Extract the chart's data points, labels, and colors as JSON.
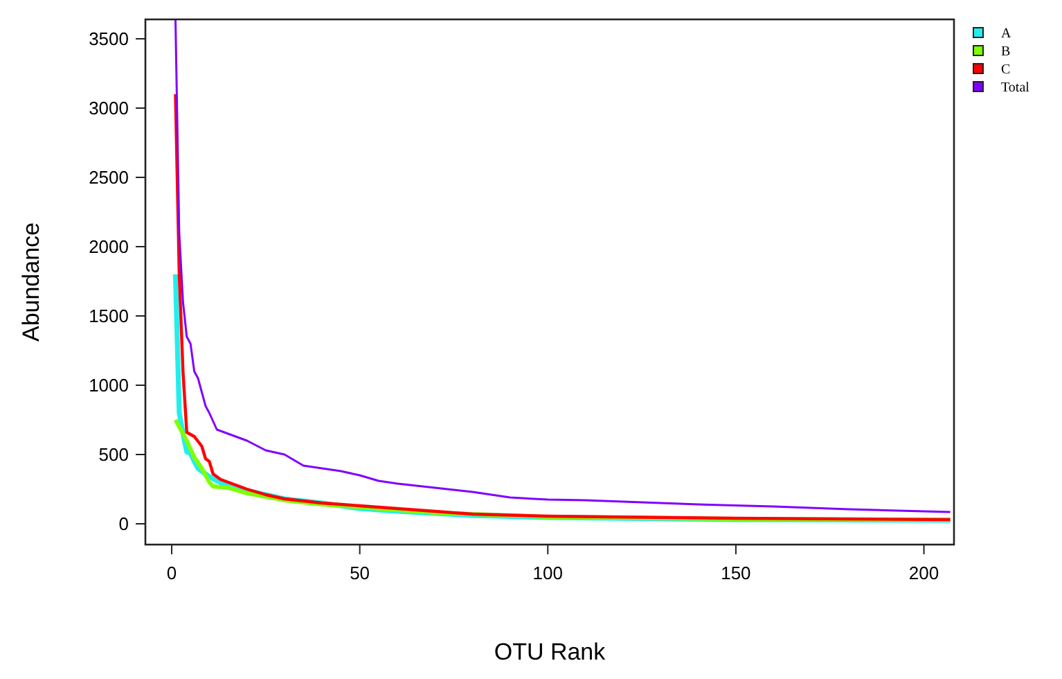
{
  "chart_data": {
    "type": "line",
    "xlabel": "OTU Rank",
    "ylabel": "Abundance",
    "xlim": [
      -7,
      208
    ],
    "ylim": [
      -150,
      3640
    ],
    "xticks": [
      0,
      50,
      100,
      150,
      200
    ],
    "yticks": [
      0,
      500,
      1000,
      1500,
      2000,
      2500,
      3000,
      3500
    ],
    "grid": false,
    "legend": "top right",
    "series": [
      {
        "name": "A",
        "color": "#22eeee",
        "x": [
          1,
          2,
          3,
          4,
          5,
          6,
          7,
          10,
          15,
          20,
          30,
          40,
          50,
          60,
          80,
          100,
          150,
          207
        ],
        "values": [
          1800,
          800,
          650,
          520,
          510,
          450,
          400,
          340,
          270,
          240,
          180,
          150,
          110,
          90,
          60,
          45,
          30,
          25
        ]
      },
      {
        "name": "B",
        "color": "#7fff00",
        "x": [
          1,
          2,
          4,
          6,
          8,
          10,
          11,
          15,
          20,
          30,
          40,
          50,
          70,
          100,
          150,
          207
        ],
        "values": [
          750,
          700,
          600,
          480,
          400,
          300,
          270,
          260,
          220,
          170,
          140,
          120,
          80,
          50,
          35,
          30
        ]
      },
      {
        "name": "C",
        "color": "#ff0000",
        "x": [
          1,
          2,
          3,
          4,
          6,
          8,
          9,
          10,
          11,
          13,
          15,
          20,
          25,
          30,
          40,
          50,
          60,
          70,
          80,
          100,
          150,
          207
        ],
        "values": [
          3100,
          1800,
          1100,
          660,
          630,
          560,
          470,
          450,
          360,
          320,
          300,
          250,
          210,
          180,
          150,
          130,
          110,
          90,
          70,
          55,
          40,
          30
        ]
      },
      {
        "name": "Total",
        "color": "#8000ff",
        "x": [
          1,
          2,
          3,
          4,
          5,
          6,
          7,
          8,
          9,
          10,
          12,
          15,
          20,
          25,
          30,
          35,
          40,
          45,
          50,
          55,
          60,
          70,
          80,
          90,
          100,
          110,
          120,
          140,
          160,
          180,
          200,
          207
        ],
        "values": [
          3640,
          2100,
          1600,
          1350,
          1300,
          1100,
          1050,
          950,
          850,
          800,
          680,
          650,
          600,
          530,
          500,
          420,
          400,
          380,
          350,
          310,
          290,
          260,
          230,
          190,
          175,
          170,
          160,
          140,
          125,
          105,
          90,
          85
        ]
      }
    ]
  }
}
